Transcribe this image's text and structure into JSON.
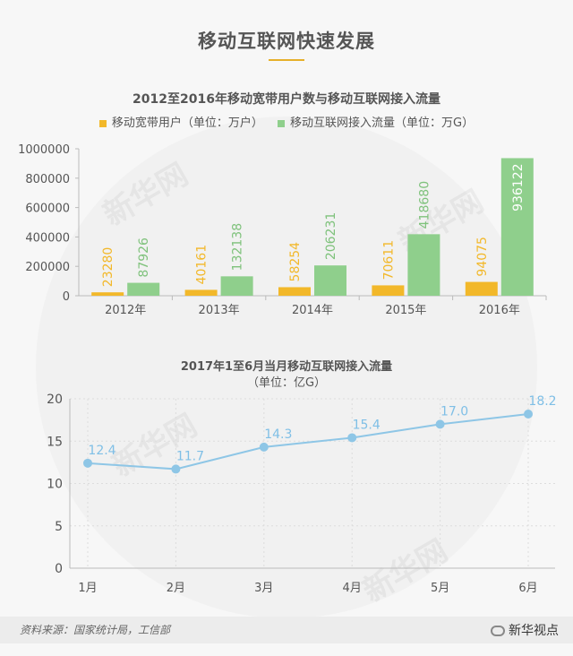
{
  "page": {
    "main_title": "移动互联网快速发展",
    "source": "资料来源：国家统计局，工信部",
    "brand": "新华视点",
    "watermark": "新华网"
  },
  "colors": {
    "bar_series1": "#f2b82a",
    "bar_series2": "#8fcf8c",
    "line": "#8ec6e6",
    "label1": "#f2b82a",
    "label2": "#7fc27c",
    "line_label": "#7fbfe6"
  },
  "chart_data": [
    {
      "type": "bar",
      "title": "2012至2016年移动宽带用户数与移动互联网接入流量",
      "categories": [
        "2012年",
        "2013年",
        "2014年",
        "2015年",
        "2016年"
      ],
      "series": [
        {
          "name": "移动宽带用户（单位：万户）",
          "values": [
            23280,
            40161,
            58254,
            70611,
            94075
          ]
        },
        {
          "name": "移动互联网接入流量（单位：万G）",
          "values": [
            87926,
            132138,
            206231,
            418680,
            936122
          ]
        }
      ],
      "ylim": [
        0,
        1000000
      ],
      "yticks": [
        "1000000",
        "800000",
        "600000",
        "400000",
        "200000",
        "0"
      ],
      "legend": "top"
    },
    {
      "type": "line",
      "title": "2017年1至6月当月移动互联网接入流量",
      "unit": "（单位：亿G）",
      "categories": [
        "1月",
        "2月",
        "3月",
        "4月",
        "5月",
        "6月"
      ],
      "values": [
        12.4,
        11.7,
        14.3,
        15.4,
        17.0,
        18.2
      ],
      "labels": [
        "12.4",
        "11.7",
        "14.3",
        "15.4",
        "17.0",
        "18.2"
      ],
      "ylim": [
        0,
        20
      ],
      "yticks": [
        "20",
        "15",
        "10",
        "5",
        "0"
      ],
      "grid": true
    }
  ]
}
